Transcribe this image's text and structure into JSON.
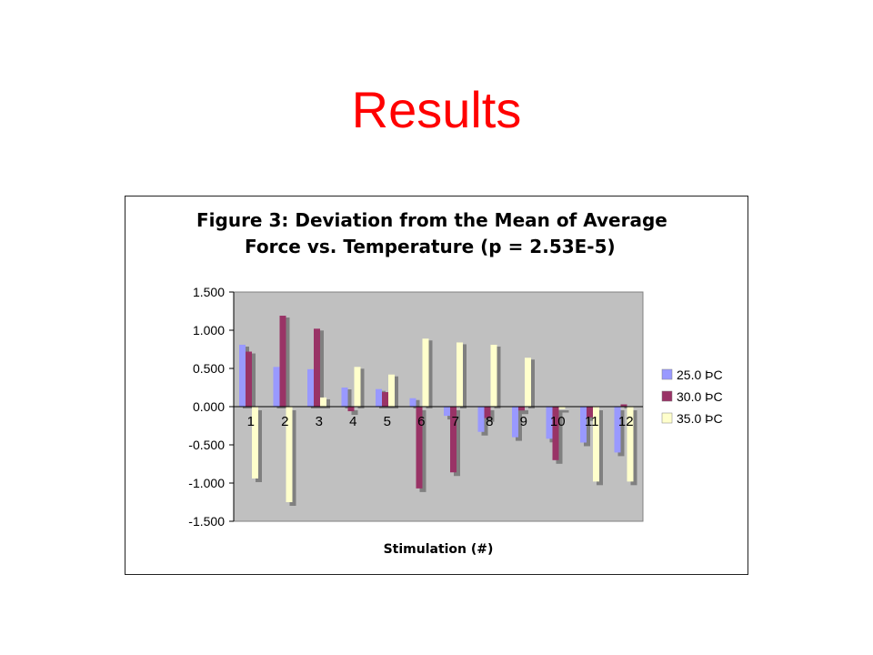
{
  "slide": {
    "title": "Results"
  },
  "chart_data": {
    "type": "bar",
    "title_lines": [
      "Figure 3: Deviation from the Mean of Average",
      "Force vs. Temperature (p = 2.53E-5)"
    ],
    "xlabel": "Stimulation (#)",
    "ylabel": "",
    "ylim": [
      -1.5,
      1.5
    ],
    "yticks": [
      "1.500",
      "1.000",
      "0.500",
      "0.000",
      "-0.500",
      "-1.000",
      "-1.500"
    ],
    "ytick_values": [
      1.5,
      1.0,
      0.5,
      0.0,
      -0.5,
      -1.0,
      -1.5
    ],
    "categories": [
      "1",
      "2",
      "3",
      "4",
      "5",
      "6",
      "7",
      "8",
      "9",
      "10",
      "11",
      "12"
    ],
    "series": [
      {
        "name": "25.0 ÞC",
        "color": "#9999ff",
        "values": [
          0.81,
          0.52,
          0.49,
          0.25,
          0.23,
          0.11,
          -0.12,
          -0.33,
          -0.4,
          -0.42,
          -0.47,
          -0.6
        ]
      },
      {
        "name": "30.0 ÞC",
        "color": "#993366",
        "values": [
          0.72,
          1.19,
          1.02,
          -0.06,
          0.19,
          -1.07,
          -0.86,
          -0.15,
          -0.05,
          -0.7,
          -0.14,
          0.03
        ]
      },
      {
        "name": "35.0 ÞC",
        "color": "#ffffcc",
        "values": [
          -0.94,
          -1.25,
          0.12,
          0.52,
          0.42,
          0.89,
          0.84,
          0.81,
          0.64,
          -0.03,
          -0.98,
          -0.98
        ]
      }
    ],
    "plot_background": "#c0c0c0",
    "shadow_color": "#808080",
    "grid": false,
    "legend_position": "right"
  }
}
